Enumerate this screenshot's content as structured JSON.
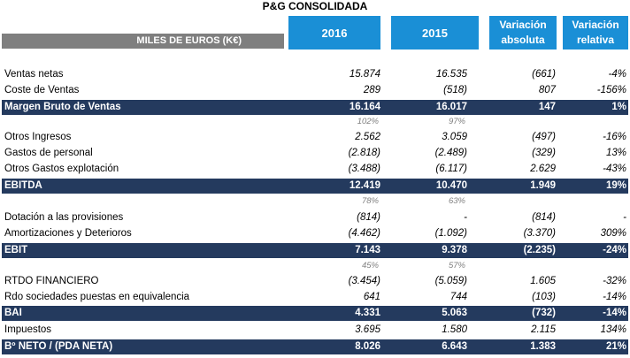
{
  "title": "P&G CONSOLIDADA",
  "header": {
    "label": "MILES DE EUROS (K€)",
    "col_2016": "2016",
    "col_2015": "2015",
    "col_abs": [
      "Variación",
      "absoluta"
    ],
    "col_rel": [
      "Variación",
      "relativa"
    ]
  },
  "rows": {
    "ventas": {
      "label": "Ventas netas",
      "v2016": "15.874",
      "v2015": "16.535",
      "abs": "(661)",
      "rel": "-4%"
    },
    "coste": {
      "label": "Coste de Ventas",
      "v2016": "289",
      "v2015": "(518)",
      "abs": "807",
      "rel": "-156%"
    },
    "margen": {
      "label": "Margen Bruto de Ventas",
      "v2016": "16.164",
      "v2015": "16.017",
      "abs": "147",
      "rel": "1%"
    },
    "margen_pct": {
      "v2016": "102%",
      "v2015": "97%"
    },
    "otros_ingresos": {
      "label": "Otros Ingresos",
      "v2016": "2.562",
      "v2015": "3.059",
      "abs": "(497)",
      "rel": "-16%"
    },
    "personal": {
      "label": "Gastos de personal",
      "v2016": "(2.818)",
      "v2015": "(2.489)",
      "abs": "(329)",
      "rel": "13%"
    },
    "otros_gastos": {
      "label": "Otros Gastos explotación",
      "v2016": "(3.488)",
      "v2015": "(6.117)",
      "abs": "2.629",
      "rel": "-43%"
    },
    "ebitda": {
      "label": "EBITDA",
      "v2016": "12.419",
      "v2015": "10.470",
      "abs": "1.949",
      "rel": "19%"
    },
    "ebitda_pct": {
      "v2016": "78%",
      "v2015": "63%"
    },
    "provisiones": {
      "label": "Dotación a las provisiones",
      "v2016": "(814)",
      "v2015": "-",
      "abs": "(814)",
      "rel": "-"
    },
    "amortizaciones": {
      "label": "Amortizaciones y Deterioros",
      "v2016": "(4.462)",
      "v2015": "(1.092)",
      "abs": "(3.370)",
      "rel": "309%"
    },
    "ebit": {
      "label": "EBIT",
      "v2016": "7.143",
      "v2015": "9.378",
      "abs": "(2.235)",
      "rel": "-24%"
    },
    "ebit_pct": {
      "v2016": "45%",
      "v2015": "57%"
    },
    "financiero": {
      "label": "RTDO FINANCIERO",
      "v2016": "(3.454)",
      "v2015": "(5.059)",
      "abs": "1.605",
      "rel": "-32%"
    },
    "sociedades": {
      "label": "Rdo sociedades puestas en equivalencia",
      "v2016": "641",
      "v2015": "744",
      "abs": "(103)",
      "rel": "-14%"
    },
    "bai": {
      "label": "BAI",
      "v2016": "4.331",
      "v2015": "5.063",
      "abs": "(732)",
      "rel": "-14%"
    },
    "impuestos": {
      "label": "Impuestos",
      "v2016": "3.695",
      "v2015": "1.580",
      "abs": "2.115",
      "rel": "134%"
    },
    "neto": {
      "label": "Bº NETO / (PDA NETA)",
      "v2016": "8.026",
      "v2015": "6.643",
      "abs": "1.383",
      "rel": "21%"
    }
  }
}
